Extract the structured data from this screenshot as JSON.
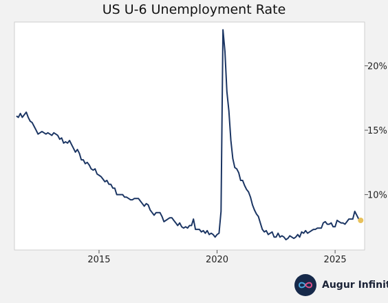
{
  "chart_data": {
    "type": "line",
    "title": "US U-6 Unemployment Rate",
    "xlabel": "",
    "ylabel": "",
    "x_tick_labels": [
      "2015",
      "2020",
      "2025"
    ],
    "y_tick_labels": [
      "10%",
      "15%",
      "20%"
    ],
    "y_ticks": [
      10,
      15,
      20
    ],
    "xlim": [
      "2011-06",
      "2026-04"
    ],
    "ylim": [
      5.7,
      23.4
    ],
    "grid": false,
    "legend": "none",
    "line_color": "#1b3563",
    "marker_color": "#e8c15a",
    "series": [
      {
        "points": [
          [
            "2011-07",
            16.1
          ],
          [
            "2011-08",
            16.0
          ],
          [
            "2011-09",
            16.3
          ],
          [
            "2011-10",
            16.0
          ],
          [
            "2011-11",
            16.2
          ],
          [
            "2011-12",
            16.4
          ],
          [
            "2012-01",
            16.0
          ],
          [
            "2012-02",
            15.7
          ],
          [
            "2012-03",
            15.6
          ],
          [
            "2012-04",
            15.3
          ],
          [
            "2012-05",
            15.0
          ],
          [
            "2012-06",
            14.7
          ],
          [
            "2012-07",
            14.8
          ],
          [
            "2012-08",
            14.9
          ],
          [
            "2012-09",
            14.8
          ],
          [
            "2012-10",
            14.7
          ],
          [
            "2012-11",
            14.8
          ],
          [
            "2012-12",
            14.7
          ],
          [
            "2013-01",
            14.6
          ],
          [
            "2013-02",
            14.8
          ],
          [
            "2013-03",
            14.7
          ],
          [
            "2013-04",
            14.6
          ],
          [
            "2013-05",
            14.3
          ],
          [
            "2013-06",
            14.4
          ],
          [
            "2013-07",
            14.0
          ],
          [
            "2013-08",
            14.1
          ],
          [
            "2013-09",
            14.0
          ],
          [
            "2013-10",
            14.2
          ],
          [
            "2013-11",
            13.9
          ],
          [
            "2013-12",
            13.6
          ],
          [
            "2014-01",
            13.3
          ],
          [
            "2014-02",
            13.5
          ],
          [
            "2014-03",
            13.2
          ],
          [
            "2014-04",
            12.7
          ],
          [
            "2014-05",
            12.7
          ],
          [
            "2014-06",
            12.4
          ],
          [
            "2014-07",
            12.5
          ],
          [
            "2014-08",
            12.3
          ],
          [
            "2014-09",
            12.0
          ],
          [
            "2014-10",
            11.9
          ],
          [
            "2014-11",
            12.0
          ],
          [
            "2014-12",
            11.6
          ],
          [
            "2015-01",
            11.5
          ],
          [
            "2015-02",
            11.4
          ],
          [
            "2015-03",
            11.2
          ],
          [
            "2015-04",
            11.0
          ],
          [
            "2015-05",
            11.1
          ],
          [
            "2015-06",
            10.8
          ],
          [
            "2015-07",
            10.8
          ],
          [
            "2015-08",
            10.5
          ],
          [
            "2015-09",
            10.5
          ],
          [
            "2015-10",
            10.0
          ],
          [
            "2015-11",
            10.0
          ],
          [
            "2015-12",
            10.0
          ],
          [
            "2016-01",
            10.0
          ],
          [
            "2016-02",
            9.8
          ],
          [
            "2016-03",
            9.8
          ],
          [
            "2016-04",
            9.7
          ],
          [
            "2016-05",
            9.6
          ],
          [
            "2016-06",
            9.6
          ],
          [
            "2016-07",
            9.7
          ],
          [
            "2016-08",
            9.7
          ],
          [
            "2016-09",
            9.7
          ],
          [
            "2016-10",
            9.5
          ],
          [
            "2016-11",
            9.3
          ],
          [
            "2016-12",
            9.1
          ],
          [
            "2017-01",
            9.3
          ],
          [
            "2017-02",
            9.2
          ],
          [
            "2017-03",
            8.8
          ],
          [
            "2017-04",
            8.6
          ],
          [
            "2017-05",
            8.4
          ],
          [
            "2017-06",
            8.6
          ],
          [
            "2017-07",
            8.6
          ],
          [
            "2017-08",
            8.6
          ],
          [
            "2017-09",
            8.3
          ],
          [
            "2017-10",
            7.9
          ],
          [
            "2017-11",
            8.0
          ],
          [
            "2017-12",
            8.1
          ],
          [
            "2018-01",
            8.2
          ],
          [
            "2018-02",
            8.2
          ],
          [
            "2018-03",
            8.0
          ],
          [
            "2018-04",
            7.8
          ],
          [
            "2018-05",
            7.6
          ],
          [
            "2018-06",
            7.8
          ],
          [
            "2018-07",
            7.5
          ],
          [
            "2018-08",
            7.4
          ],
          [
            "2018-09",
            7.5
          ],
          [
            "2018-10",
            7.4
          ],
          [
            "2018-11",
            7.6
          ],
          [
            "2018-12",
            7.6
          ],
          [
            "2019-01",
            8.1
          ],
          [
            "2019-02",
            7.3
          ],
          [
            "2019-03",
            7.3
          ],
          [
            "2019-04",
            7.3
          ],
          [
            "2019-05",
            7.1
          ],
          [
            "2019-06",
            7.2
          ],
          [
            "2019-07",
            7.0
          ],
          [
            "2019-08",
            7.2
          ],
          [
            "2019-09",
            6.9
          ],
          [
            "2019-10",
            7.0
          ],
          [
            "2019-11",
            6.9
          ],
          [
            "2019-12",
            6.7
          ],
          [
            "2020-01",
            6.9
          ],
          [
            "2020-02",
            7.0
          ],
          [
            "2020-03",
            8.7
          ],
          [
            "2020-04",
            22.8
          ],
          [
            "2020-05",
            21.1
          ],
          [
            "2020-06",
            18.0
          ],
          [
            "2020-07",
            16.5
          ],
          [
            "2020-08",
            14.2
          ],
          [
            "2020-09",
            12.8
          ],
          [
            "2020-10",
            12.1
          ],
          [
            "2020-11",
            12.0
          ],
          [
            "2020-12",
            11.7
          ],
          [
            "2021-01",
            11.1
          ],
          [
            "2021-02",
            11.1
          ],
          [
            "2021-03",
            10.7
          ],
          [
            "2021-04",
            10.4
          ],
          [
            "2021-05",
            10.2
          ],
          [
            "2021-06",
            9.8
          ],
          [
            "2021-07",
            9.2
          ],
          [
            "2021-08",
            8.8
          ],
          [
            "2021-09",
            8.5
          ],
          [
            "2021-10",
            8.3
          ],
          [
            "2021-11",
            7.8
          ],
          [
            "2021-12",
            7.3
          ],
          [
            "2022-01",
            7.1
          ],
          [
            "2022-02",
            7.2
          ],
          [
            "2022-03",
            6.9
          ],
          [
            "2022-04",
            7.0
          ],
          [
            "2022-05",
            7.1
          ],
          [
            "2022-06",
            6.7
          ],
          [
            "2022-07",
            6.7
          ],
          [
            "2022-08",
            7.0
          ],
          [
            "2022-09",
            6.7
          ],
          [
            "2022-10",
            6.8
          ],
          [
            "2022-11",
            6.7
          ],
          [
            "2022-12",
            6.5
          ],
          [
            "2023-01",
            6.6
          ],
          [
            "2023-02",
            6.8
          ],
          [
            "2023-03",
            6.7
          ],
          [
            "2023-04",
            6.6
          ],
          [
            "2023-05",
            6.7
          ],
          [
            "2023-06",
            6.9
          ],
          [
            "2023-07",
            6.7
          ],
          [
            "2023-08",
            7.1
          ],
          [
            "2023-09",
            7.0
          ],
          [
            "2023-10",
            7.2
          ],
          [
            "2023-11",
            7.0
          ],
          [
            "2023-12",
            7.1
          ],
          [
            "2024-01",
            7.2
          ],
          [
            "2024-02",
            7.3
          ],
          [
            "2024-03",
            7.3
          ],
          [
            "2024-04",
            7.4
          ],
          [
            "2024-05",
            7.4
          ],
          [
            "2024-06",
            7.4
          ],
          [
            "2024-07",
            7.8
          ],
          [
            "2024-08",
            7.9
          ],
          [
            "2024-09",
            7.7
          ],
          [
            "2024-10",
            7.7
          ],
          [
            "2024-11",
            7.8
          ],
          [
            "2024-12",
            7.5
          ],
          [
            "2025-01",
            7.5
          ],
          [
            "2025-02",
            8.0
          ],
          [
            "2025-03",
            7.9
          ],
          [
            "2025-04",
            7.8
          ],
          [
            "2025-05",
            7.8
          ],
          [
            "2025-06",
            7.7
          ],
          [
            "2025-07",
            7.9
          ],
          [
            "2025-08",
            8.1
          ],
          [
            "2025-09",
            8.1
          ],
          [
            "2025-10",
            8.1
          ],
          [
            "2025-11",
            8.7
          ],
          [
            "2025-12",
            8.4
          ],
          [
            "2026-01",
            8.1
          ]
        ]
      }
    ],
    "last_point": [
      "2026-02",
      8.0
    ]
  },
  "brand": {
    "name": "Augur Infinity",
    "logo_icon": "infinity-icon"
  }
}
